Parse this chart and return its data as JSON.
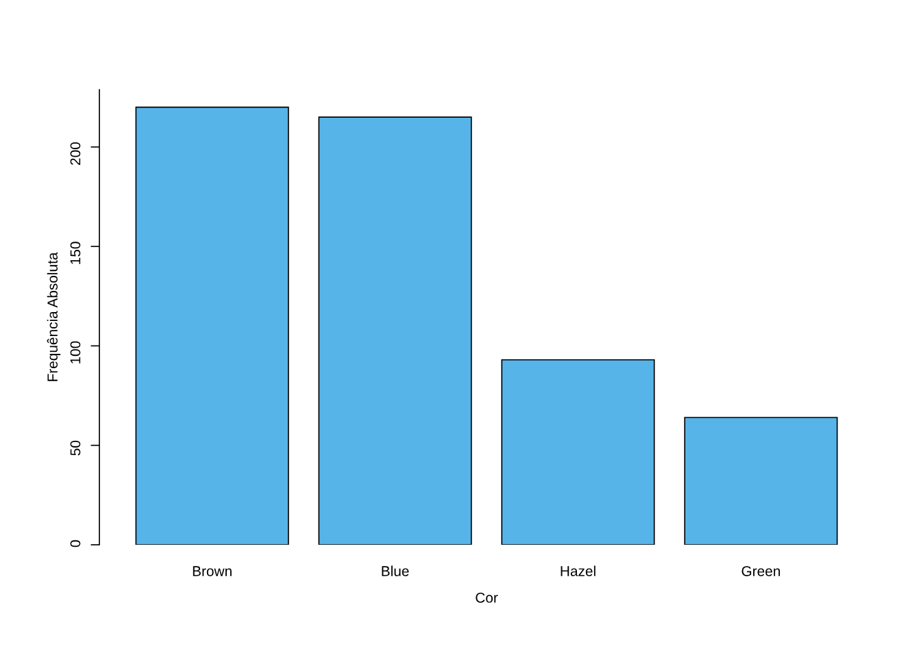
{
  "chart_data": {
    "type": "bar",
    "xlabel": "Cor",
    "ylabel": "Frequência Absoluta",
    "categories": [
      "Brown",
      "Blue",
      "Hazel",
      "Green"
    ],
    "values": [
      220,
      215,
      93,
      64
    ],
    "color": "#56b4e9",
    "ylim": [
      0,
      228.8
    ],
    "yticks": [
      0,
      50,
      100,
      150,
      200
    ],
    "grid": false
  }
}
